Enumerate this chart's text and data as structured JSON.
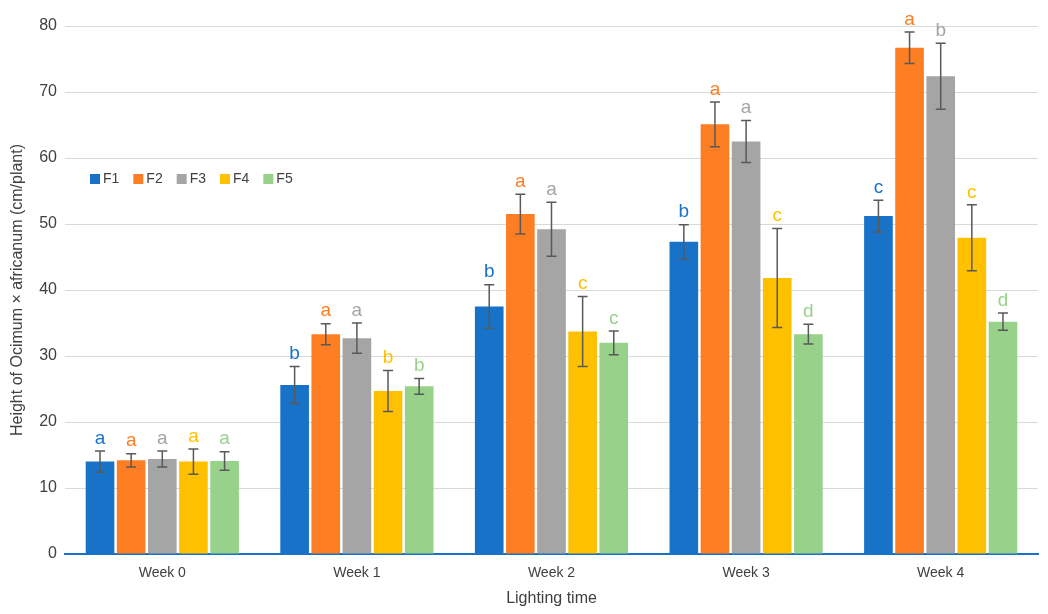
{
  "chart_data": {
    "type": "bar",
    "xlabel": "Lighting time",
    "ylabel": "Height of Ocimum × africanum (cm/plant)",
    "categories": [
      "Week 0",
      "Week 1",
      "Week 2",
      "Week 3",
      "Week 4"
    ],
    "series": [
      {
        "name": "F1",
        "color": "#1872c8",
        "values": [
          14.0,
          25.6,
          37.5,
          47.3,
          51.2
        ],
        "errors": [
          1.6,
          2.8,
          3.3,
          2.6,
          2.4
        ]
      },
      {
        "name": "F2",
        "color": "#fd7e23",
        "values": [
          14.2,
          33.3,
          51.5,
          65.1,
          76.7
        ],
        "errors": [
          1.0,
          1.6,
          3.0,
          3.4,
          2.4
        ]
      },
      {
        "name": "F3",
        "color": "#a5a5a5",
        "values": [
          14.4,
          32.7,
          49.2,
          62.5,
          72.4
        ],
        "errors": [
          1.2,
          2.3,
          4.1,
          3.2,
          5.0
        ]
      },
      {
        "name": "F4",
        "color": "#ffc000",
        "values": [
          14.0,
          24.7,
          33.7,
          41.8,
          47.9
        ],
        "errors": [
          1.9,
          3.1,
          5.3,
          7.5,
          5.0
        ]
      },
      {
        "name": "F5",
        "color": "#97d18a",
        "values": [
          14.1,
          25.4,
          32.0,
          33.3,
          35.2
        ],
        "errors": [
          1.4,
          1.2,
          1.8,
          1.5,
          1.3
        ]
      }
    ],
    "ylim": [
      0,
      80
    ],
    "yticks": [
      0,
      10,
      20,
      30,
      40,
      50,
      60,
      70,
      80
    ],
    "grid": "y",
    "legend": "top left",
    "annotations": [
      "a",
      "a",
      "a",
      "a",
      "a",
      "b",
      "a",
      "a",
      "b",
      "b",
      "b",
      "a",
      "a",
      "c",
      "c",
      "b",
      "a",
      "a",
      "c",
      "d",
      "c",
      "a",
      "b",
      "c",
      "d"
    ]
  }
}
